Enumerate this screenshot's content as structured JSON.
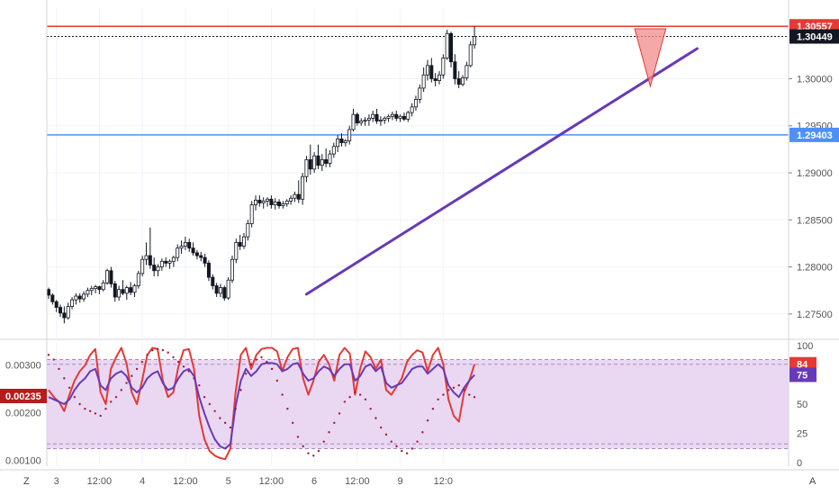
{
  "chart_data": {
    "type": "candlestick",
    "symbol_pane": {
      "price_axis_ticks": [
        "1.30000",
        "1.29500",
        "1.29000",
        "1.28500",
        "1.28000",
        "1.27500"
      ],
      "price_axis_range": [
        1.2725,
        1.3076
      ],
      "price_labels": [
        {
          "value": "1.30557",
          "color": "#e53935",
          "text_color": "#ffffff"
        },
        {
          "value": "1.30449",
          "color": "#131722",
          "text_color": "#ffffff"
        },
        {
          "value": "1.29403",
          "color": "#4f8ff7",
          "text_color": "#131722"
        }
      ],
      "horizontal_lines": [
        {
          "price": 1.30557,
          "color": "#e53935",
          "style": "solid"
        },
        {
          "price": 1.30449,
          "color": "#131722",
          "style": "dotted"
        },
        {
          "price": 1.29403,
          "color": "#4f8ff7",
          "style": "solid"
        }
      ],
      "trendline": {
        "color": "#673ab7",
        "from": {
          "bar": 66,
          "price": 1.2771
        },
        "to": {
          "bar": 166,
          "price": 1.3032
        }
      },
      "triangle": {
        "fill": "#f28b8b",
        "stroke": "#e53935",
        "points": [
          {
            "bar": 150,
            "price": 1.3053
          },
          {
            "bar": 158,
            "price": 1.3053
          },
          {
            "bar": 154,
            "price": 1.2992
          }
        ]
      },
      "candles": [
        [
          1.2776,
          1.2778,
          1.2766,
          1.277
        ],
        [
          1.277,
          1.2772,
          1.276,
          1.2763
        ],
        [
          1.2763,
          1.2765,
          1.2752,
          1.2757
        ],
        [
          1.2757,
          1.276,
          1.2747,
          1.2751
        ],
        [
          1.2751,
          1.2758,
          1.274,
          1.2746
        ],
        [
          1.2746,
          1.2762,
          1.2744,
          1.2758
        ],
        [
          1.2758,
          1.2768,
          1.2755,
          1.2765
        ],
        [
          1.2765,
          1.2772,
          1.276,
          1.2769
        ],
        [
          1.2769,
          1.2772,
          1.2762,
          1.2766
        ],
        [
          1.2766,
          1.2774,
          1.2763,
          1.2771
        ],
        [
          1.2771,
          1.2778,
          1.2768,
          1.2775
        ],
        [
          1.2775,
          1.278,
          1.277,
          1.2777
        ],
        [
          1.2777,
          1.2781,
          1.2772,
          1.2779
        ],
        [
          1.2779,
          1.278,
          1.2771,
          1.2776
        ],
        [
          1.2776,
          1.2786,
          1.2774,
          1.2783
        ],
        [
          1.2783,
          1.2798,
          1.2781,
          1.2796
        ],
        [
          1.2796,
          1.28,
          1.2778,
          1.2782
        ],
        [
          1.2782,
          1.2785,
          1.2763,
          1.2768
        ],
        [
          1.2768,
          1.278,
          1.2764,
          1.2776
        ],
        [
          1.2776,
          1.2786,
          1.277,
          1.2772
        ],
        [
          1.2772,
          1.278,
          1.2765,
          1.2778
        ],
        [
          1.2778,
          1.2784,
          1.277,
          1.2773
        ],
        [
          1.2773,
          1.2782,
          1.2768,
          1.278
        ],
        [
          1.278,
          1.2796,
          1.2777,
          1.2793
        ],
        [
          1.2793,
          1.2812,
          1.279,
          1.2808
        ],
        [
          1.2808,
          1.2826,
          1.2802,
          1.2812
        ],
        [
          1.2812,
          1.2842,
          1.2798,
          1.2802
        ],
        [
          1.2802,
          1.281,
          1.279,
          1.2796
        ],
        [
          1.2796,
          1.2803,
          1.279,
          1.28
        ],
        [
          1.28,
          1.2809,
          1.2796,
          1.2806
        ],
        [
          1.2806,
          1.281,
          1.28,
          1.2804
        ],
        [
          1.2804,
          1.2808,
          1.2798,
          1.2806
        ],
        [
          1.2806,
          1.2812,
          1.28,
          1.281
        ],
        [
          1.281,
          1.2824,
          1.2806,
          1.282
        ],
        [
          1.282,
          1.2828,
          1.2814,
          1.2822
        ],
        [
          1.2822,
          1.2832,
          1.2818,
          1.2826
        ],
        [
          1.2826,
          1.283,
          1.2816,
          1.282
        ],
        [
          1.282,
          1.2826,
          1.2812,
          1.2815
        ],
        [
          1.2815,
          1.2818,
          1.2808,
          1.2812
        ],
        [
          1.2812,
          1.2816,
          1.2806,
          1.281
        ],
        [
          1.281,
          1.2814,
          1.28,
          1.2804
        ],
        [
          1.2804,
          1.2807,
          1.2785,
          1.2789
        ],
        [
          1.2789,
          1.2792,
          1.2776,
          1.278
        ],
        [
          1.278,
          1.2783,
          1.2768,
          1.2772
        ],
        [
          1.2772,
          1.2782,
          1.2768,
          1.2778
        ],
        [
          1.2778,
          1.278,
          1.2764,
          1.2767
        ],
        [
          1.2767,
          1.2789,
          1.2765,
          1.2786
        ],
        [
          1.2786,
          1.2812,
          1.2783,
          1.2808
        ],
        [
          1.2808,
          1.283,
          1.2804,
          1.2826
        ],
        [
          1.2826,
          1.2834,
          1.2818,
          1.2822
        ],
        [
          1.2822,
          1.2836,
          1.2819,
          1.2832
        ],
        [
          1.2832,
          1.285,
          1.2828,
          1.2846
        ],
        [
          1.2846,
          1.287,
          1.2842,
          1.2866
        ],
        [
          1.2866,
          1.2876,
          1.286,
          1.2871
        ],
        [
          1.2871,
          1.2876,
          1.2864,
          1.2868
        ],
        [
          1.2868,
          1.2874,
          1.2862,
          1.287
        ],
        [
          1.287,
          1.2874,
          1.2864,
          1.2872
        ],
        [
          1.2872,
          1.2876,
          1.2862,
          1.2866
        ],
        [
          1.2866,
          1.2873,
          1.2861,
          1.2869
        ],
        [
          1.2869,
          1.2872,
          1.2862,
          1.2865
        ],
        [
          1.2865,
          1.287,
          1.2862,
          1.2867
        ],
        [
          1.2867,
          1.2872,
          1.2864,
          1.287
        ],
        [
          1.287,
          1.2876,
          1.2866,
          1.2873
        ],
        [
          1.2873,
          1.288,
          1.2869,
          1.2877
        ],
        [
          1.2877,
          1.2892,
          1.2868,
          1.2872
        ],
        [
          1.2872,
          1.29,
          1.2866,
          1.2896
        ],
        [
          1.2896,
          1.2918,
          1.289,
          1.2914
        ],
        [
          1.2914,
          1.293,
          1.2898,
          1.2904
        ],
        [
          1.2904,
          1.2922,
          1.29,
          1.2918
        ],
        [
          1.2918,
          1.293,
          1.2904,
          1.2908
        ],
        [
          1.2908,
          1.292,
          1.2902,
          1.2914
        ],
        [
          1.2914,
          1.2926,
          1.2906,
          1.291
        ],
        [
          1.291,
          1.2924,
          1.2906,
          1.292
        ],
        [
          1.292,
          1.2932,
          1.2916,
          1.2928
        ],
        [
          1.2928,
          1.294,
          1.2922,
          1.2936
        ],
        [
          1.2936,
          1.2942,
          1.2928,
          1.2932
        ],
        [
          1.2932,
          1.2936,
          1.2928,
          1.2934
        ],
        [
          1.2934,
          1.295,
          1.293,
          1.2946
        ],
        [
          1.2946,
          1.2968,
          1.2944,
          1.2962
        ],
        [
          1.2962,
          1.2964,
          1.295,
          1.2953
        ],
        [
          1.2953,
          1.2958,
          1.295,
          1.2955
        ],
        [
          1.2955,
          1.2959,
          1.295,
          1.2956
        ],
        [
          1.2956,
          1.2962,
          1.295,
          1.2958
        ],
        [
          1.2958,
          1.2966,
          1.2954,
          1.2962
        ],
        [
          1.2962,
          1.2968,
          1.2952,
          1.2955
        ],
        [
          1.2955,
          1.296,
          1.295,
          1.2956
        ],
        [
          1.2956,
          1.296,
          1.2952,
          1.2958
        ],
        [
          1.2958,
          1.2962,
          1.2954,
          1.296
        ],
        [
          1.296,
          1.2965,
          1.2956,
          1.2962
        ],
        [
          1.2962,
          1.2966,
          1.2955,
          1.2958
        ],
        [
          1.2958,
          1.2962,
          1.2954,
          1.296
        ],
        [
          1.296,
          1.2964,
          1.2955,
          1.2957
        ],
        [
          1.2957,
          1.2966,
          1.2954,
          1.2964
        ],
        [
          1.2964,
          1.2974,
          1.296,
          1.297
        ],
        [
          1.297,
          1.2982,
          1.2966,
          1.2978
        ],
        [
          1.2978,
          1.2994,
          1.2974,
          1.299
        ],
        [
          1.299,
          1.3012,
          1.2986,
          1.3004
        ],
        [
          1.3004,
          1.302,
          1.2998,
          1.3014
        ],
        [
          1.3014,
          1.3022,
          1.2996,
          1.3
        ],
        [
          1.3,
          1.3006,
          1.2992,
          1.2998
        ],
        [
          1.2998,
          1.3008,
          1.2994,
          1.3004
        ],
        [
          1.3004,
          1.3026,
          1.3,
          1.3022
        ],
        [
          1.3022,
          1.3052,
          1.302,
          1.3048
        ],
        [
          1.3048,
          1.305,
          1.3012,
          1.3018
        ],
        [
          1.3018,
          1.3026,
          1.2994,
          1.3
        ],
        [
          1.3,
          1.3008,
          1.299,
          1.2994
        ],
        [
          1.2994,
          1.3004,
          1.2992,
          1.3001
        ],
        [
          1.3001,
          1.3018,
          1.2998,
          1.3014
        ],
        [
          1.3014,
          1.304,
          1.3012,
          1.3036
        ],
        [
          1.3036,
          1.3056,
          1.3032,
          1.3045
        ]
      ]
    },
    "oscillator_pane": {
      "left_axis_ticks": [
        "0.00300",
        "0.00200",
        "0.00100"
      ],
      "left_axis_range": [
        0.00088,
        0.00348
      ],
      "left_badge": {
        "value": "0.00235",
        "color": "#b71c1c",
        "text_color": "#ffffff"
      },
      "right_axis_ticks": [
        "100",
        "75",
        "50",
        "25",
        "0"
      ],
      "right_axis_range": [
        -3,
        103
      ],
      "right_badges": [
        {
          "value": "84",
          "color": "#e53935",
          "text_color": "#ffffff"
        },
        {
          "value": "75",
          "color": "#673ab7",
          "text_color": "#ffffff"
        }
      ],
      "band_fill": "#ead8f3",
      "band_levels": [
        88,
        84,
        16,
        12
      ],
      "series": [
        {
          "color": "#e53935",
          "style": "line",
          "values": [
            62,
            56,
            52,
            44,
            58,
            70,
            78,
            83,
            92,
            97,
            60,
            50,
            80,
            90,
            98,
            85,
            60,
            50,
            70,
            92,
            98,
            97,
            70,
            56,
            60,
            82,
            96,
            97,
            80,
            40,
            20,
            10,
            6,
            4,
            3,
            12,
            60,
            92,
            98,
            80,
            92,
            97,
            98,
            98,
            95,
            78,
            90,
            97,
            98,
            72,
            58,
            70,
            86,
            92,
            84,
            70,
            92,
            98,
            93,
            58,
            80,
            95,
            90,
            80,
            88,
            62,
            58,
            65,
            72,
            86,
            92,
            96,
            94,
            78,
            92,
            98,
            84,
            54,
            40,
            35,
            60,
            70,
            84
          ]
        },
        {
          "color": "#673ab7",
          "style": "line",
          "values": [
            56,
            54,
            52,
            50,
            54,
            62,
            68,
            72,
            78,
            80,
            66,
            62,
            72,
            76,
            78,
            74,
            64,
            60,
            64,
            72,
            76,
            78,
            68,
            62,
            64,
            72,
            78,
            80,
            74,
            56,
            42,
            30,
            20,
            14,
            12,
            16,
            48,
            70,
            80,
            74,
            78,
            84,
            85,
            85,
            84,
            78,
            80,
            84,
            85,
            76,
            70,
            72,
            78,
            82,
            80,
            74,
            80,
            84,
            84,
            70,
            74,
            82,
            84,
            78,
            82,
            68,
            64,
            66,
            68,
            74,
            80,
            82,
            82,
            76,
            80,
            84,
            80,
            66,
            60,
            56,
            64,
            70,
            75
          ]
        },
        {
          "color": "#a21b36",
          "style": "dotted",
          "values": [
            92,
            88,
            80,
            72,
            64,
            56,
            50,
            46,
            44,
            42,
            40,
            46,
            52,
            56,
            62,
            68,
            74,
            80,
            86,
            92,
            96,
            97,
            96,
            94,
            90,
            86,
            82,
            78,
            72,
            66,
            56,
            50,
            44,
            38,
            34,
            30,
            46,
            62,
            76,
            84,
            88,
            90,
            86,
            80,
            70,
            58,
            46,
            34,
            22,
            14,
            8,
            6,
            10,
            18,
            26,
            34,
            42,
            52,
            56,
            60,
            58,
            54,
            46,
            38,
            30,
            24,
            18,
            14,
            10,
            8,
            12,
            18,
            26,
            36,
            46,
            54,
            58,
            62,
            64,
            66,
            62,
            58,
            56
          ]
        }
      ]
    },
    "time_axis": {
      "labels": [
        "3",
        "12:00",
        "4",
        "12:00",
        "5",
        "12:00",
        "6",
        "12:00",
        "9",
        "12:0"
      ],
      "label_bars": [
        2,
        13,
        24,
        35,
        46,
        57,
        68,
        79,
        90,
        101
      ]
    },
    "corner_labels": {
      "left": "Z",
      "right": "A"
    }
  }
}
